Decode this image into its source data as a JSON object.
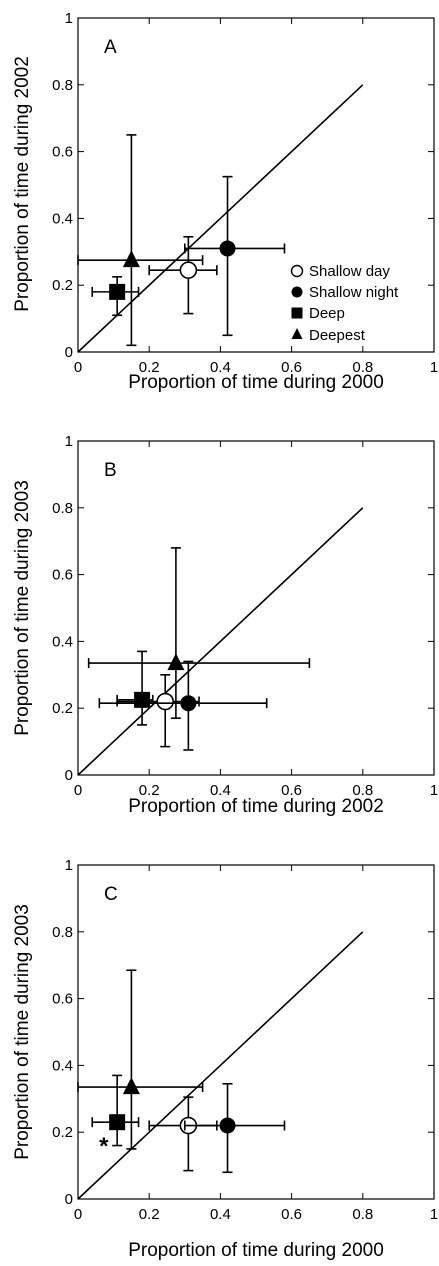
{
  "chart_data": [
    {
      "type": "scatter",
      "panel_label": "A",
      "xlabel": "Proportion of time during 2000",
      "ylabel": "Proportion of time during 2002",
      "xlim": [
        0,
        1
      ],
      "ylim": [
        0,
        1
      ],
      "x_ticks": [
        "0",
        "0.2",
        "0.4",
        "0.6",
        "0.8",
        "1"
      ],
      "y_ticks": [
        "0",
        "0.2",
        "0.4",
        "0.6",
        "0.8",
        "1"
      ],
      "reference_line": {
        "x": [
          0,
          0.8
        ],
        "y": [
          0,
          0.8
        ]
      },
      "legend": {
        "placement": "lower-right",
        "entries": [
          {
            "label": "Shallow day",
            "marker": "open-circle"
          },
          {
            "label": "Shallow night",
            "marker": "filled-circle"
          },
          {
            "label": "Deep",
            "marker": "filled-square"
          },
          {
            "label": "Deepest",
            "marker": "filled-triangle"
          }
        ]
      },
      "series": [
        {
          "name": "Shallow day",
          "marker": "open-circle",
          "x": 0.31,
          "y": 0.245,
          "x_err": [
            0.2,
            0.39
          ],
          "y_err": [
            0.115,
            0.345
          ]
        },
        {
          "name": "Shallow night",
          "marker": "filled-circle",
          "x": 0.42,
          "y": 0.31,
          "x_err": [
            0.3,
            0.58
          ],
          "y_err": [
            0.05,
            0.525
          ]
        },
        {
          "name": "Deep",
          "marker": "filled-square",
          "x": 0.11,
          "y": 0.18,
          "x_err": [
            0.04,
            0.17
          ],
          "y_err": [
            0.11,
            0.225
          ]
        },
        {
          "name": "Deepest",
          "marker": "filled-triangle",
          "x": 0.15,
          "y": 0.275,
          "x_err": [
            0,
            0.35
          ],
          "y_err": [
            0.02,
            0.65
          ]
        }
      ],
      "annotations": []
    },
    {
      "type": "scatter",
      "panel_label": "B",
      "xlabel": "Proportion of time during 2002",
      "ylabel": "Proportion of time during 2003",
      "xlim": [
        0,
        1
      ],
      "ylim": [
        0,
        1
      ],
      "x_ticks": [
        "0",
        "0.2",
        "0.4",
        "0.6",
        "0.8",
        "1"
      ],
      "y_ticks": [
        "0",
        "0.2",
        "0.4",
        "0.6",
        "0.8",
        "1"
      ],
      "reference_line": {
        "x": [
          0,
          0.8
        ],
        "y": [
          0,
          0.8
        ]
      },
      "series": [
        {
          "name": "Shallow day",
          "marker": "open-circle",
          "x": 0.245,
          "y": 0.22,
          "x_err": [
            0.11,
            0.34
          ],
          "y_err": [
            0.085,
            0.3
          ]
        },
        {
          "name": "Shallow night",
          "marker": "filled-circle",
          "x": 0.31,
          "y": 0.215,
          "x_err": [
            0.06,
            0.53
          ],
          "y_err": [
            0.075,
            0.34
          ]
        },
        {
          "name": "Deep",
          "marker": "filled-square",
          "x": 0.18,
          "y": 0.225,
          "x_err": [
            0.11,
            0.21
          ],
          "y_err": [
            0.15,
            0.37
          ]
        },
        {
          "name": "Deepest",
          "marker": "filled-triangle",
          "x": 0.275,
          "y": 0.335,
          "x_err": [
            0.03,
            0.65
          ],
          "y_err": [
            0.17,
            0.68
          ]
        }
      ],
      "annotations": []
    },
    {
      "type": "scatter",
      "panel_label": "C",
      "xlabel": "Proportion of time during 2000",
      "ylabel": "Proportion of time during 2003",
      "xlim": [
        0,
        1
      ],
      "ylim": [
        0,
        1
      ],
      "x_ticks": [
        "0",
        "0.2",
        "0.4",
        "0.6",
        "0.8",
        "1"
      ],
      "y_ticks": [
        "0",
        "0.2",
        "0.4",
        "0.6",
        "0.8",
        "1"
      ],
      "reference_line": {
        "x": [
          0,
          0.8
        ],
        "y": [
          0,
          0.8
        ]
      },
      "series": [
        {
          "name": "Shallow day",
          "marker": "open-circle",
          "x": 0.31,
          "y": 0.22,
          "x_err": [
            0.2,
            0.39
          ],
          "y_err": [
            0.085,
            0.305
          ]
        },
        {
          "name": "Shallow night",
          "marker": "filled-circle",
          "x": 0.42,
          "y": 0.22,
          "x_err": [
            0.3,
            0.58
          ],
          "y_err": [
            0.08,
            0.345
          ]
        },
        {
          "name": "Deep",
          "marker": "filled-square",
          "x": 0.11,
          "y": 0.23,
          "x_err": [
            0.04,
            0.17
          ],
          "y_err": [
            0.16,
            0.37
          ]
        },
        {
          "name": "Deepest",
          "marker": "filled-triangle",
          "x": 0.15,
          "y": 0.335,
          "x_err": [
            0,
            0.35
          ],
          "y_err": [
            0.15,
            0.685
          ]
        }
      ],
      "annotations": [
        {
          "text": "*",
          "near_series": "Deep"
        }
      ]
    }
  ]
}
